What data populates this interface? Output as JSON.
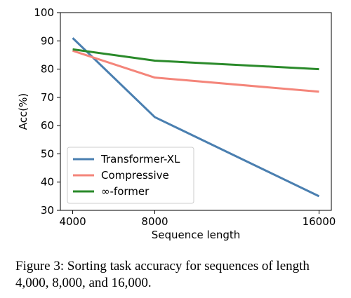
{
  "chart_data": {
    "type": "line",
    "x": [
      4000,
      8000,
      16000
    ],
    "x_tick_labels": [
      "4000",
      "8000",
      "16000"
    ],
    "xlabel": "Sequence length",
    "ylabel": "Acc(%)",
    "ylim": [
      30,
      100
    ],
    "y_ticks": [
      30,
      40,
      50,
      60,
      70,
      80,
      90,
      100
    ],
    "grid": false,
    "legend_position": "lower-left",
    "series": [
      {
        "name": "Transformer-XL",
        "color": "#4a7fb0",
        "values": [
          91,
          63,
          35
        ]
      },
      {
        "name": "Compressive",
        "color": "#f4857a",
        "values": [
          86.5,
          77,
          72
        ]
      },
      {
        "name": "∞-former",
        "color": "#2a8a2a",
        "values": [
          87,
          83,
          80
        ]
      }
    ]
  },
  "caption": "Figure 3: Sorting task accuracy for sequences of length 4,000, 8,000, and 16,000."
}
